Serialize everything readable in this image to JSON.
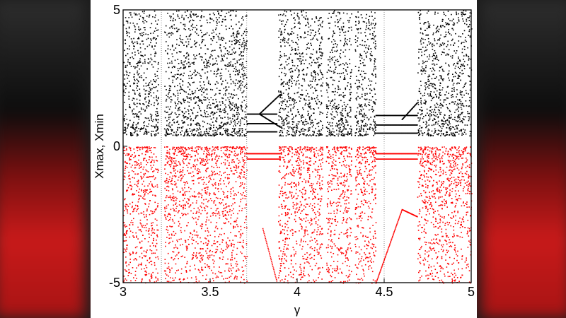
{
  "chart_data": {
    "type": "scatter",
    "title": "",
    "xlabel": "γ",
    "ylabel": "Xmax, Xmin",
    "xlim": [
      3,
      5
    ],
    "ylim": [
      -5,
      5
    ],
    "xticks": [
      "3",
      "3.5",
      "4",
      "4.5",
      "5"
    ],
    "yticks": [
      "5",
      "0",
      "-5"
    ],
    "grid": "vertical dotted lines at x = 3.22, 3.71, 4.5",
    "series": [
      {
        "color": "#000000",
        "chaotic_bands": [
          [
            3.0,
            3.71
          ],
          [
            3.89,
            4.15
          ],
          [
            4.16,
            4.31
          ],
          [
            4.33,
            4.45
          ],
          [
            4.69,
            5.0
          ]
        ],
        "periodic_windows": [
          [
            3.71,
            3.89
          ],
          [
            4.45,
            4.69
          ]
        ],
        "band_y_range": [
          0.4,
          5.0
        ]
      },
      {
        "color": "#ff0000",
        "chaotic_bands": [
          [
            3.0,
            3.71
          ],
          [
            3.89,
            4.15
          ],
          [
            4.16,
            4.31
          ],
          [
            4.33,
            4.45
          ],
          [
            4.69,
            5.0
          ]
        ],
        "periodic_windows": [
          [
            3.71,
            3.89
          ],
          [
            4.45,
            4.69
          ]
        ],
        "band_y_range": [
          -5.0,
          0.0
        ]
      }
    ]
  }
}
